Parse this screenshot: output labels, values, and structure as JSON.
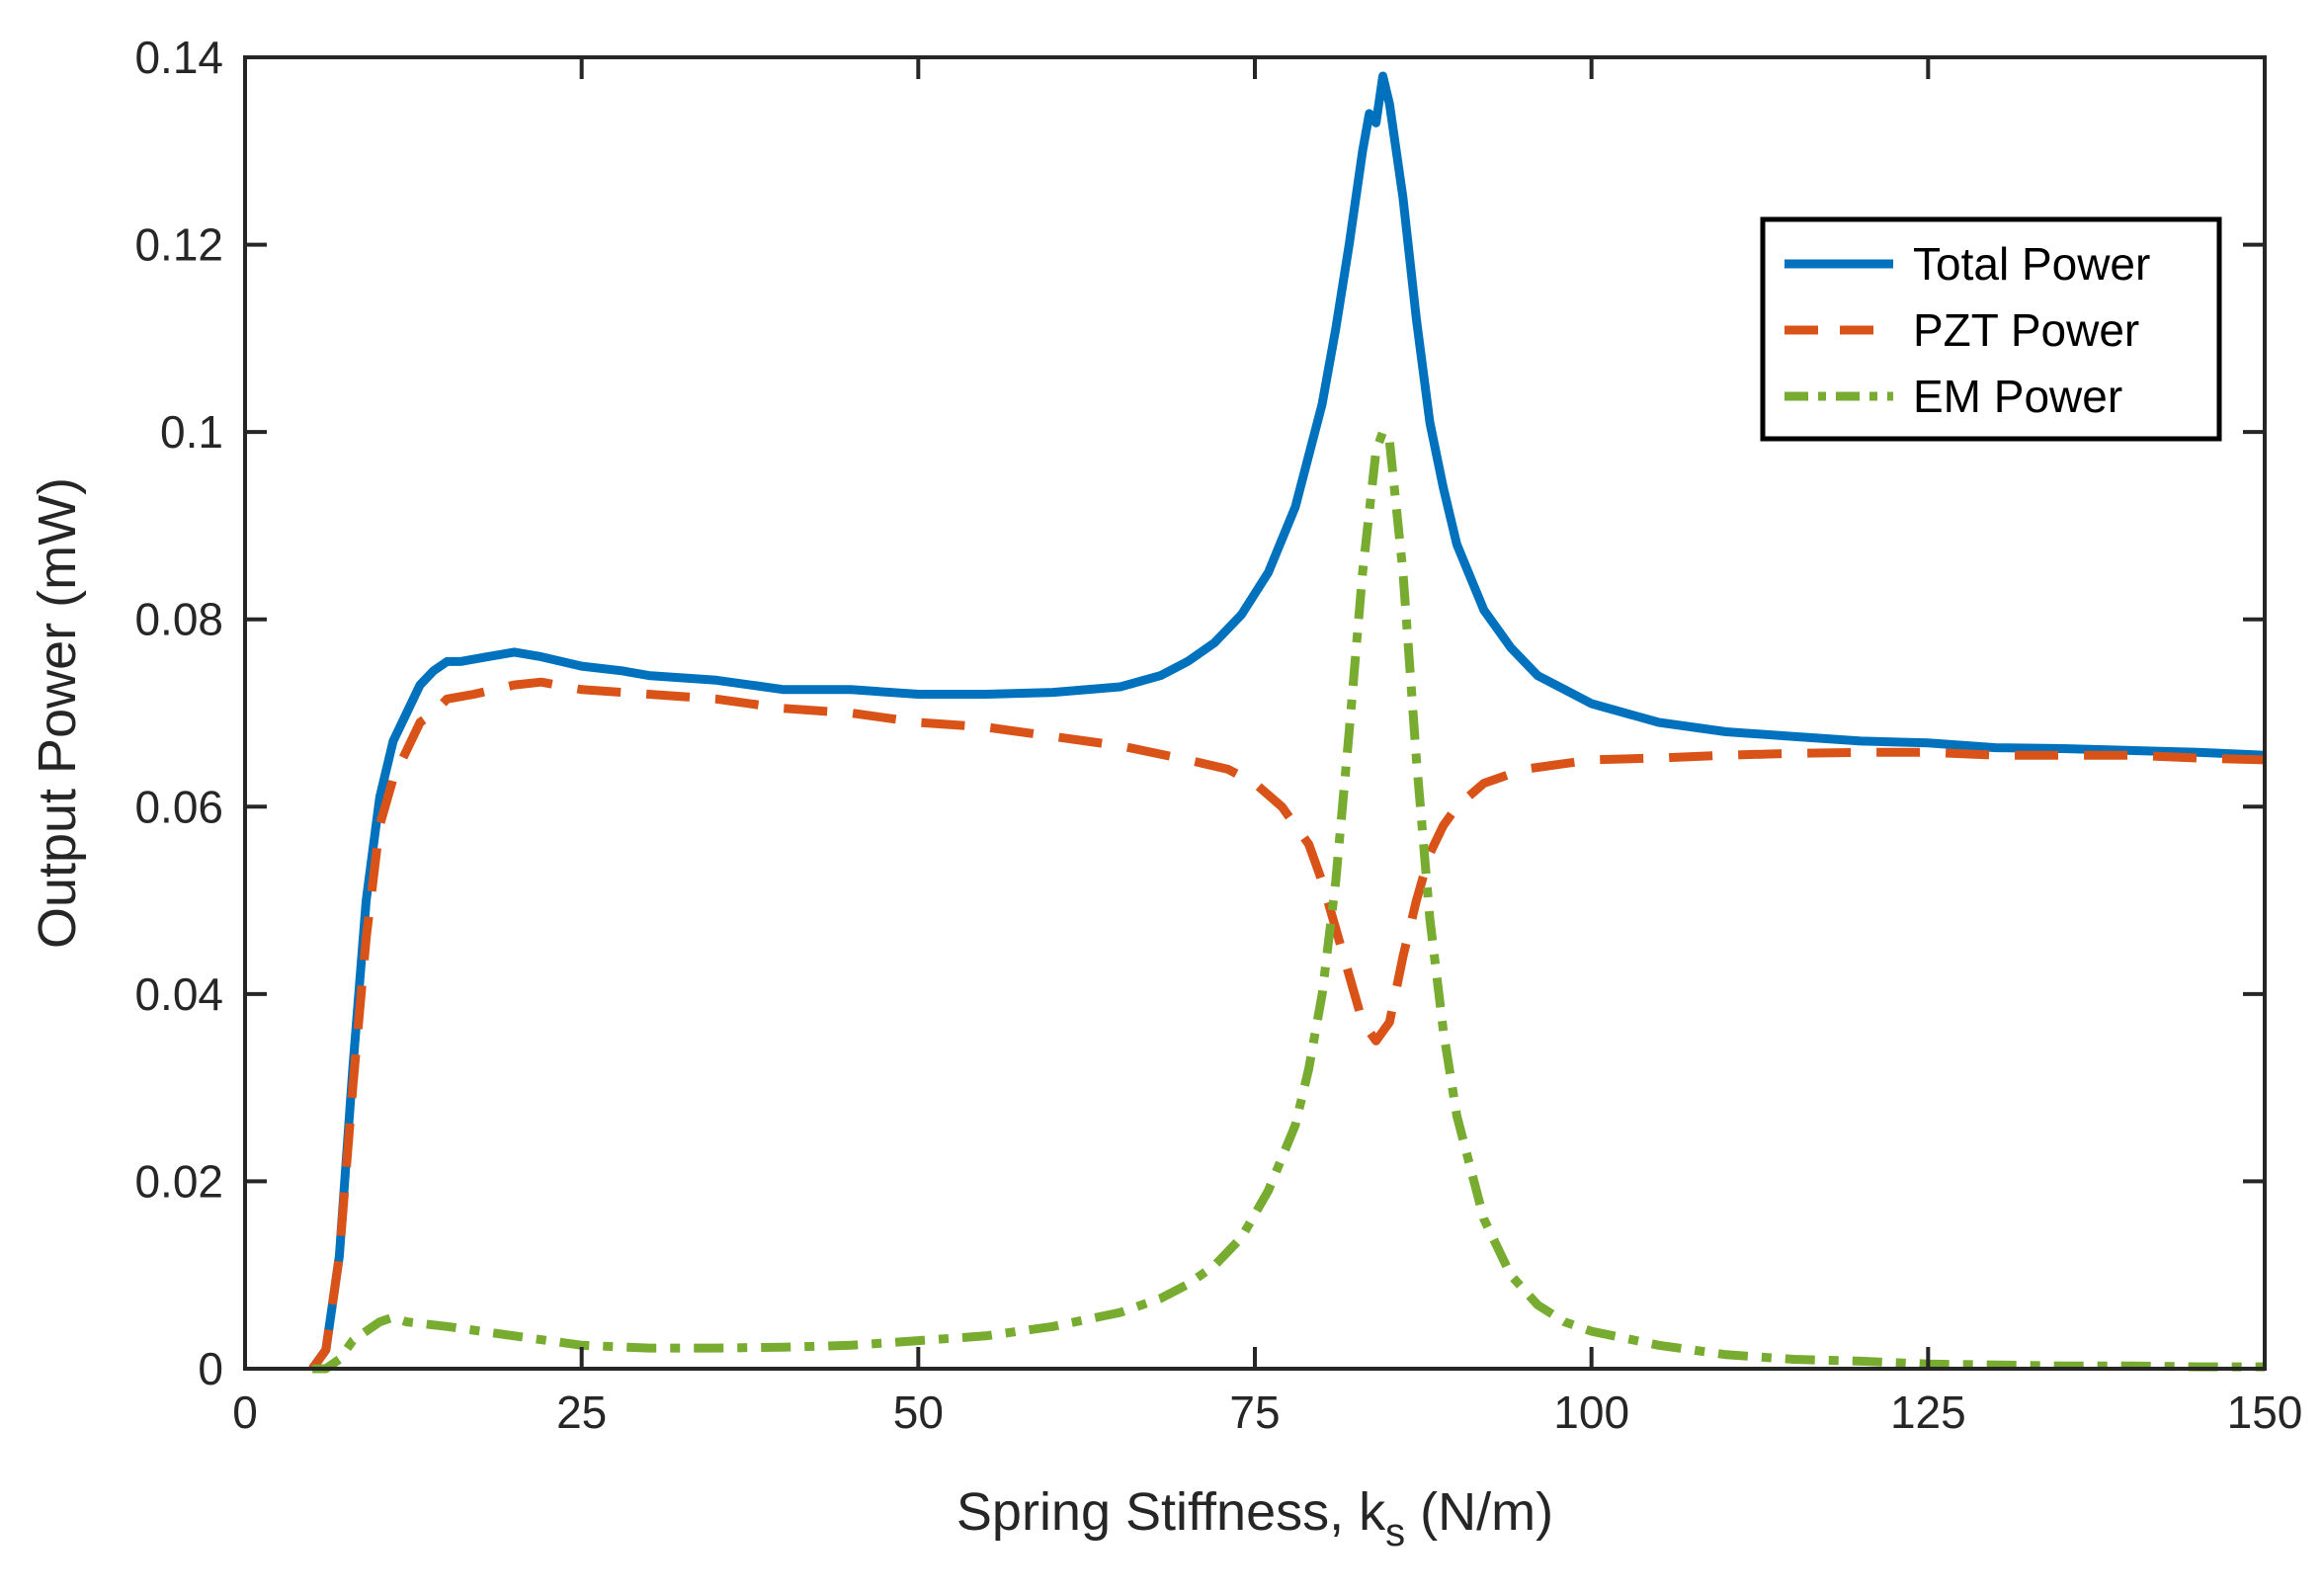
{
  "chart_data": {
    "type": "line",
    "title": "",
    "xlabel": "Spring Stiffness, k",
    "xlabel_sub": "s",
    "xlabel_unit": " (N/m)",
    "ylabel": "Output Power (mW)",
    "xlim": [
      0,
      150
    ],
    "ylim": [
      0,
      0.14
    ],
    "xticks": [
      0,
      25,
      50,
      75,
      100,
      125,
      150
    ],
    "xtick_labels": [
      "0",
      "25",
      "50",
      "75",
      "100",
      "125",
      "150"
    ],
    "yticks": [
      0,
      0.02,
      0.04,
      0.06,
      0.08,
      0.1,
      0.12,
      0.14
    ],
    "ytick_labels": [
      "0",
      "0.02",
      "0.04",
      "0.06",
      "0.08",
      "0.1",
      "0.12",
      "0.14"
    ],
    "grid": false,
    "legend_position": "top-right",
    "series": [
      {
        "name": "Total Power",
        "color": "#0072BD",
        "style": "solid",
        "points": [
          [
            5,
            0
          ],
          [
            6,
            0.002
          ],
          [
            7,
            0.012
          ],
          [
            8,
            0.032
          ],
          [
            9,
            0.05
          ],
          [
            10,
            0.061
          ],
          [
            11,
            0.067
          ],
          [
            12,
            0.07
          ],
          [
            13,
            0.073
          ],
          [
            14,
            0.0745
          ],
          [
            15,
            0.0755
          ],
          [
            16,
            0.0755
          ],
          [
            18,
            0.076
          ],
          [
            20,
            0.0765
          ],
          [
            22,
            0.076
          ],
          [
            25,
            0.075
          ],
          [
            28,
            0.0745
          ],
          [
            30,
            0.074
          ],
          [
            35,
            0.0735
          ],
          [
            40,
            0.0725
          ],
          [
            45,
            0.0725
          ],
          [
            50,
            0.072
          ],
          [
            55,
            0.072
          ],
          [
            60,
            0.0722
          ],
          [
            65,
            0.0728
          ],
          [
            68,
            0.074
          ],
          [
            70,
            0.0755
          ],
          [
            72,
            0.0775
          ],
          [
            74,
            0.0805
          ],
          [
            76,
            0.085
          ],
          [
            78,
            0.092
          ],
          [
            80,
            0.103
          ],
          [
            81,
            0.111
          ],
          [
            82,
            0.12
          ],
          [
            83,
            0.13
          ],
          [
            83.5,
            0.134
          ],
          [
            84,
            0.133
          ],
          [
            84.5,
            0.138
          ],
          [
            85,
            0.135
          ],
          [
            86,
            0.125
          ],
          [
            87,
            0.112
          ],
          [
            88,
            0.101
          ],
          [
            89,
            0.094
          ],
          [
            90,
            0.088
          ],
          [
            92,
            0.081
          ],
          [
            94,
            0.077
          ],
          [
            96,
            0.074
          ],
          [
            98,
            0.0725
          ],
          [
            100,
            0.071
          ],
          [
            105,
            0.069
          ],
          [
            110,
            0.068
          ],
          [
            115,
            0.0675
          ],
          [
            120,
            0.067
          ],
          [
            125,
            0.0668
          ],
          [
            130,
            0.0663
          ],
          [
            135,
            0.0662
          ],
          [
            140,
            0.066
          ],
          [
            145,
            0.0658
          ],
          [
            150,
            0.0655
          ]
        ]
      },
      {
        "name": "PZT Power",
        "color": "#D95319",
        "style": "dashed",
        "points": [
          [
            5,
            0
          ],
          [
            6,
            0.002
          ],
          [
            7,
            0.012
          ],
          [
            8,
            0.03
          ],
          [
            9,
            0.046
          ],
          [
            10,
            0.058
          ],
          [
            11,
            0.063
          ],
          [
            12,
            0.066
          ],
          [
            13,
            0.069
          ],
          [
            14,
            0.07
          ],
          [
            15,
            0.0715
          ],
          [
            17,
            0.072
          ],
          [
            20,
            0.073
          ],
          [
            22,
            0.0733
          ],
          [
            25,
            0.0725
          ],
          [
            30,
            0.072
          ],
          [
            35,
            0.0715
          ],
          [
            40,
            0.0705
          ],
          [
            45,
            0.07
          ],
          [
            50,
            0.069
          ],
          [
            55,
            0.0685
          ],
          [
            60,
            0.0675
          ],
          [
            65,
            0.0665
          ],
          [
            70,
            0.065
          ],
          [
            73,
            0.064
          ],
          [
            75,
            0.0625
          ],
          [
            77,
            0.06
          ],
          [
            79,
            0.056
          ],
          [
            80,
            0.052
          ],
          [
            81,
            0.047
          ],
          [
            82,
            0.042
          ],
          [
            83,
            0.037
          ],
          [
            84,
            0.035
          ],
          [
            85,
            0.037
          ],
          [
            86,
            0.044
          ],
          [
            87,
            0.05
          ],
          [
            88,
            0.055
          ],
          [
            89,
            0.058
          ],
          [
            90,
            0.06
          ],
          [
            92,
            0.0625
          ],
          [
            95,
            0.064
          ],
          [
            100,
            0.065
          ],
          [
            105,
            0.0652
          ],
          [
            110,
            0.0655
          ],
          [
            115,
            0.0657
          ],
          [
            120,
            0.0658
          ],
          [
            125,
            0.0658
          ],
          [
            130,
            0.0655
          ],
          [
            135,
            0.0655
          ],
          [
            140,
            0.0655
          ],
          [
            145,
            0.0652
          ],
          [
            150,
            0.065
          ]
        ]
      },
      {
        "name": "EM Power",
        "color": "#77AC30",
        "style": "dash-dot",
        "points": [
          [
            5,
            0
          ],
          [
            6,
            0
          ],
          [
            7,
            0.001
          ],
          [
            8,
            0.003
          ],
          [
            9,
            0.004
          ],
          [
            10,
            0.005
          ],
          [
            11,
            0.0055
          ],
          [
            12,
            0.005
          ],
          [
            15,
            0.0045
          ],
          [
            20,
            0.0035
          ],
          [
            25,
            0.0025
          ],
          [
            30,
            0.0022
          ],
          [
            35,
            0.0022
          ],
          [
            40,
            0.0023
          ],
          [
            45,
            0.0025
          ],
          [
            50,
            0.003
          ],
          [
            55,
            0.0035
          ],
          [
            60,
            0.0045
          ],
          [
            65,
            0.006
          ],
          [
            68,
            0.0075
          ],
          [
            70,
            0.009
          ],
          [
            72,
            0.011
          ],
          [
            74,
            0.014
          ],
          [
            76,
            0.019
          ],
          [
            78,
            0.026
          ],
          [
            79,
            0.032
          ],
          [
            80,
            0.04
          ],
          [
            81,
            0.052
          ],
          [
            82,
            0.068
          ],
          [
            83,
            0.085
          ],
          [
            84,
            0.098
          ],
          [
            84.5,
            0.1
          ],
          [
            85,
            0.099
          ],
          [
            86,
            0.085
          ],
          [
            87,
            0.065
          ],
          [
            88,
            0.048
          ],
          [
            89,
            0.036
          ],
          [
            90,
            0.027
          ],
          [
            92,
            0.016
          ],
          [
            94,
            0.01
          ],
          [
            96,
            0.0068
          ],
          [
            98,
            0.005
          ],
          [
            100,
            0.004
          ],
          [
            105,
            0.0025
          ],
          [
            110,
            0.0015
          ],
          [
            115,
            0.001
          ],
          [
            120,
            0.0008
          ],
          [
            125,
            0.0005
          ],
          [
            130,
            0.0004
          ],
          [
            135,
            0.0003
          ],
          [
            140,
            0.0003
          ],
          [
            145,
            0.0002
          ],
          [
            150,
            0.0002
          ]
        ]
      }
    ]
  }
}
